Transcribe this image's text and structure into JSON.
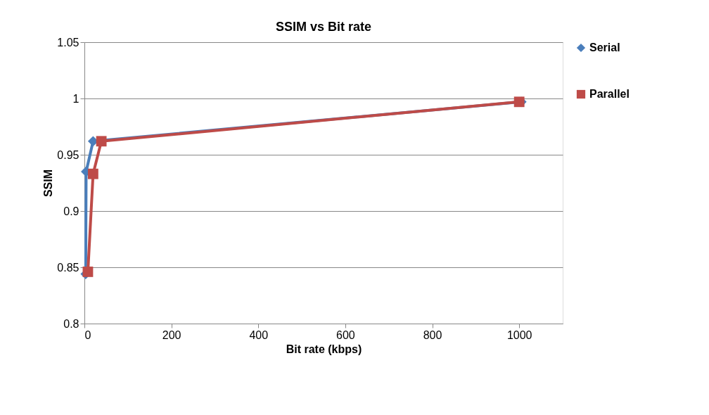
{
  "chart_data": {
    "type": "line",
    "title": "SSIM vs Bit rate",
    "xlabel": "Bit rate (kbps)",
    "ylabel": "SSIM",
    "xlim": [
      0,
      1100
    ],
    "xticks": [
      0,
      200,
      400,
      600,
      800,
      1000
    ],
    "ylim": [
      0.8,
      1.05
    ],
    "yticks": [
      0.8,
      0.85,
      0.9,
      0.95,
      1,
      1.05
    ],
    "grid": "y",
    "legend": "right",
    "line_style": "solid",
    "series": [
      {
        "name": "Serial",
        "color": "#4a7ebb",
        "marker": "diamond",
        "x": [
          3,
          4,
          20,
          1005
        ],
        "values": [
          0.844,
          0.935,
          0.962,
          0.997
        ]
      },
      {
        "name": "Parallel",
        "color": "#be4b48",
        "marker": "square",
        "x": [
          8,
          20,
          39,
          1000
        ],
        "values": [
          0.846,
          0.933,
          0.962,
          0.997
        ]
      }
    ]
  }
}
